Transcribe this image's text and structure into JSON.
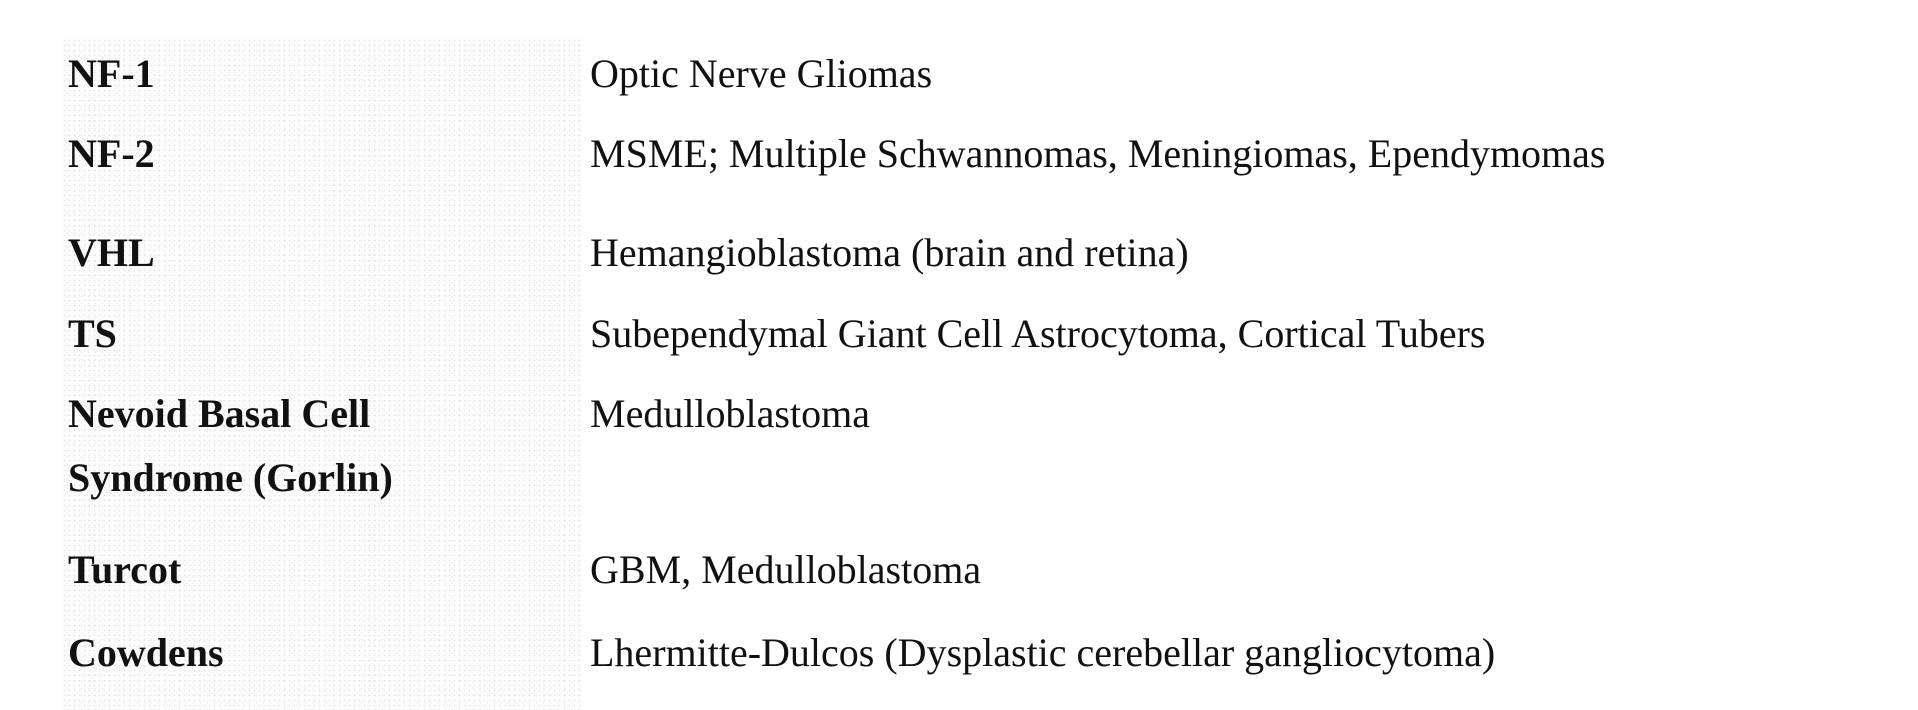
{
  "rows": [
    {
      "condition": [
        "NF-1"
      ],
      "tumors": "Optic Nerve Gliomas"
    },
    {
      "condition": [
        "NF-2"
      ],
      "tumors": "MSME; Multiple Schwannomas, Meningiomas, Ependymomas"
    },
    {
      "condition": [
        "VHL"
      ],
      "tumors": "Hemangioblastoma (brain and retina)"
    },
    {
      "condition": [
        "TS"
      ],
      "tumors": "Subependymal Giant Cell Astrocytoma, Cortical Tubers"
    },
    {
      "condition": [
        "Nevoid Basal Cell",
        "Syndrome (Gorlin)"
      ],
      "tumors": "Medulloblastoma"
    },
    {
      "condition": [
        "Turcot"
      ],
      "tumors": "GBM, Medulloblastoma"
    },
    {
      "condition": [
        "Cowdens"
      ],
      "tumors": "Lhermitte-Dulcos (Dysplastic cerebellar gangliocytoma)"
    }
  ]
}
